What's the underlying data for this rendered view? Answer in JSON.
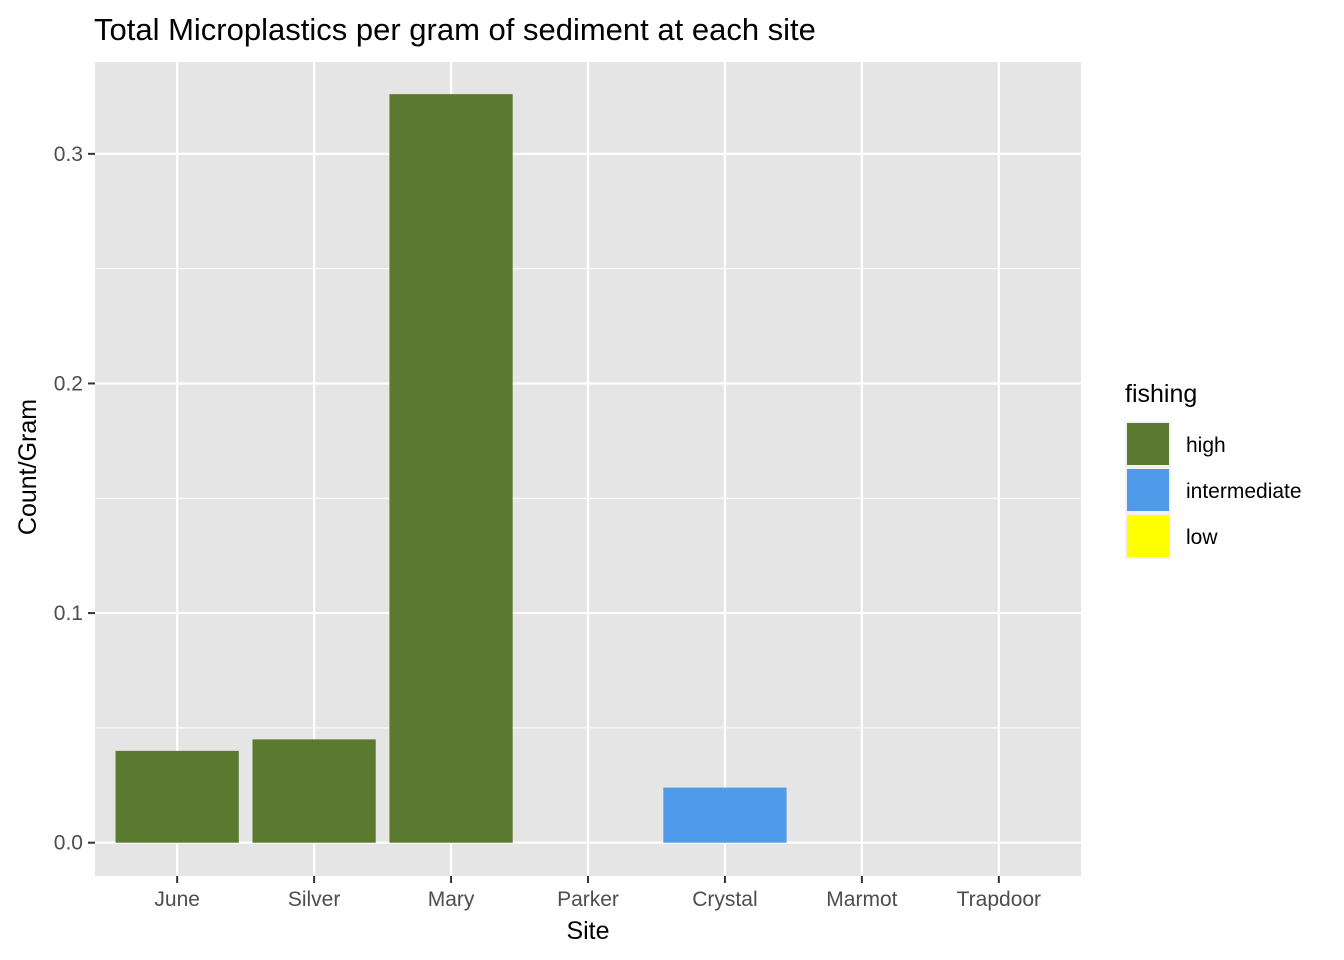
{
  "chart_data": {
    "type": "bar",
    "title": "Total Microplastics per gram of sediment at each site",
    "xlabel": "Site",
    "ylabel": "Count/Gram",
    "categories": [
      "June",
      "Silver",
      "Mary",
      "Parker",
      "Crystal",
      "Marmot",
      "Trapdoor"
    ],
    "values": [
      0.04,
      0.045,
      0.326,
      0.0,
      0.024,
      0.0,
      0.0
    ],
    "fishing": [
      "high",
      "high",
      "high",
      "low",
      "intermediate",
      "low",
      "low"
    ],
    "ylim": [
      -0.0145,
      0.34
    ],
    "yticks": [
      0.0,
      0.1,
      0.2,
      0.3
    ],
    "ytick_labels": [
      "0.0",
      "0.1",
      "0.2",
      "0.3"
    ],
    "grid": true,
    "legend": {
      "title": "fishing",
      "position": "right",
      "entries": [
        {
          "label": "high",
          "color": "#5c7a2f"
        },
        {
          "label": "intermediate",
          "color": "#4f9bea"
        },
        {
          "label": "low",
          "color": "#ffff00"
        }
      ]
    },
    "colors": {
      "panel_background": "#e5e5e5",
      "grid": "#ffffff",
      "tick_text": "#4d4d4d",
      "tick_mark": "#333333"
    }
  }
}
